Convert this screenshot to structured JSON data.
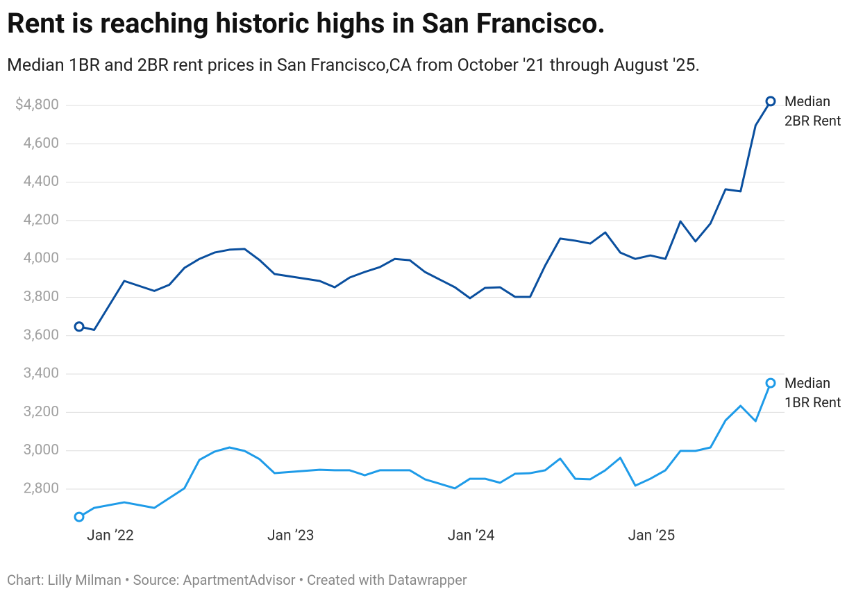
{
  "chart_data": {
    "type": "line",
    "title": "Rent is reaching historic highs in San Francisco.",
    "subtitle": "Median 1BR and 2BR rent prices in San Francisco,CA from October '21 through August '25.",
    "footer": "Chart: Lilly Milman • Source: ApartmentAdvisor • Created with Datawrapper",
    "x": [
      "2021-10",
      "2021-11",
      "2022-01",
      "2022-03",
      "2022-04",
      "2022-05",
      "2022-06",
      "2022-07",
      "2022-08",
      "2022-09",
      "2022-10",
      "2022-11",
      "2023-02",
      "2023-03",
      "2023-04",
      "2023-05",
      "2023-06",
      "2023-07",
      "2023-08",
      "2023-09",
      "2023-11",
      "2023-12",
      "2024-01",
      "2024-02",
      "2024-03",
      "2024-04",
      "2024-05",
      "2024-06",
      "2024-07",
      "2024-08",
      "2024-09",
      "2024-10",
      "2024-11",
      "2024-12",
      "2025-01",
      "2025-02",
      "2025-03",
      "2025-04",
      "2025-05",
      "2025-06",
      "2025-07",
      "2025-08"
    ],
    "xlim": [
      "2021-10",
      "2025-08"
    ],
    "xticks": [
      {
        "value": "2022-01",
        "label": "Jan ’22"
      },
      {
        "value": "2023-01",
        "label": "Jan ’23"
      },
      {
        "value": "2024-01",
        "label": "Jan ’24"
      },
      {
        "value": "2025-01",
        "label": "Jan ’25"
      }
    ],
    "ylim": [
      2600,
      4800
    ],
    "yticks": [
      {
        "value": 2800,
        "label": "2,800"
      },
      {
        "value": 3000,
        "label": "3,000"
      },
      {
        "value": 3200,
        "label": "3,200"
      },
      {
        "value": 3400,
        "label": "3,400"
      },
      {
        "value": 3600,
        "label": "3,600"
      },
      {
        "value": 3800,
        "label": "3,800"
      },
      {
        "value": 4000,
        "label": "4,000"
      },
      {
        "value": 4200,
        "label": "4,200"
      },
      {
        "value": 4400,
        "label": "4,400"
      },
      {
        "value": 4600,
        "label": "4,600"
      },
      {
        "value": 4800,
        "label": "$4,800"
      }
    ],
    "grid": true,
    "series": [
      {
        "name": "Median 2BR Rent",
        "color": "#0a4f9e",
        "values": [
          3647,
          3630,
          3885,
          3833,
          3865,
          3953,
          4000,
          4033,
          4048,
          4052,
          3994,
          3921,
          3885,
          3852,
          3903,
          3932,
          3957,
          4000,
          3993,
          3932,
          3852,
          3795,
          3849,
          3852,
          3802,
          3802,
          3965,
          4106,
          4095,
          4080,
          4138,
          4033,
          4000,
          4018,
          4000,
          4196,
          4091,
          4185,
          4363,
          4352,
          4696,
          4822
        ]
      },
      {
        "name": "Median 1BR Rent",
        "color": "#1e9be8",
        "values": [
          2655,
          2702,
          2731,
          2702,
          2753,
          2804,
          2952,
          2995,
          3017,
          2999,
          2956,
          2883,
          2901,
          2898,
          2898,
          2872,
          2898,
          2898,
          2898,
          2851,
          2804,
          2854,
          2854,
          2833,
          2880,
          2883,
          2898,
          2959,
          2854,
          2851,
          2898,
          2963,
          2818,
          2854,
          2898,
          2999,
          2999,
          3017,
          3158,
          3234,
          3154,
          3353
        ]
      }
    ]
  }
}
